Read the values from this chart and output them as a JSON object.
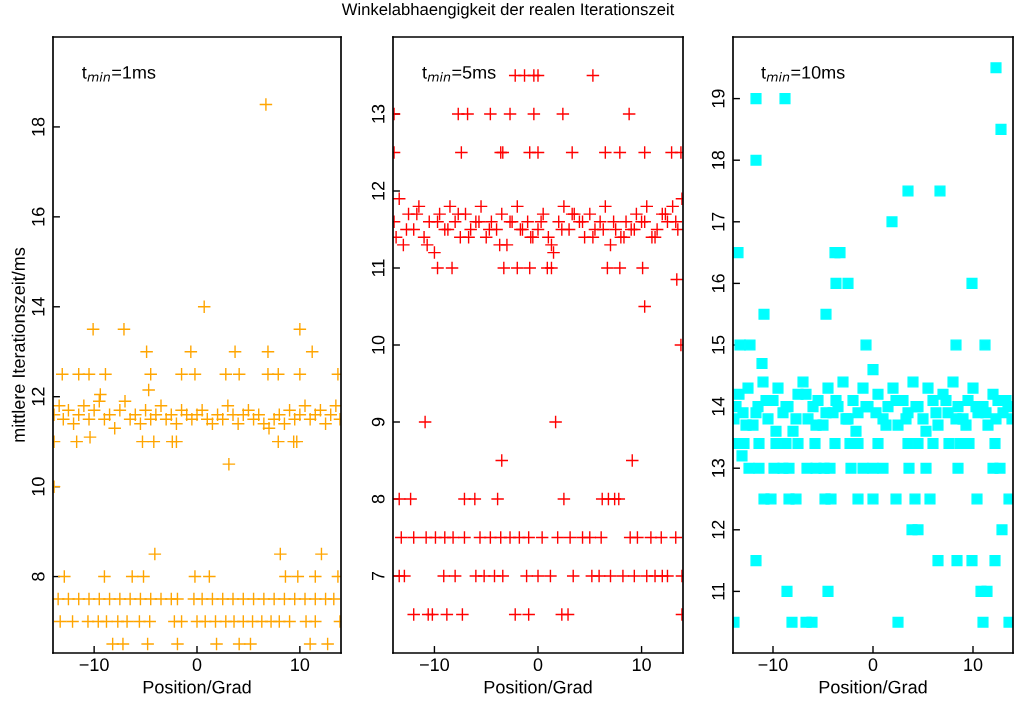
{
  "chart_data": [
    {
      "type": "scatter",
      "xlabel": "Position/Grad",
      "ylabel": "mittlere Iterationszeit/ms",
      "annotations": [
        "t$_{min}$=1ms"
      ],
      "marker": "cross",
      "grid": false,
      "xlim": [
        -14,
        14
      ],
      "xticks": [
        -10,
        0,
        10
      ],
      "ylim": [
        6.3,
        20
      ],
      "yticks": [
        8,
        10,
        12,
        14,
        16,
        18
      ],
      "series": [
        {
          "color": "#ffa500",
          "x": [
            6.7,
            0.7,
            -10.1,
            -7.1,
            10.0,
            -4.9,
            -0.6,
            3.7,
            6.9,
            11.2,
            -13.1,
            -11.5,
            -10.5,
            -8.9,
            -4.5,
            -1.5,
            -0.2,
            2.8,
            4.1,
            6.9,
            7.9,
            10.0,
            13.7,
            -4.7,
            -9.4,
            -13.9,
            -11.7,
            -10.4,
            -5.3,
            -4.2,
            -2.4,
            -2.0,
            7.9,
            9.4,
            9.7,
            3.1,
            -13.9,
            -4.1,
            8.1,
            12.1,
            -12.9,
            -9.0,
            -6.3,
            -5.2,
            -0.2,
            1.2,
            8.6,
            9.8,
            11.5,
            13.7,
            -13.5,
            -12.5,
            -11.5,
            -10.5,
            -9.5,
            -8.5,
            -7.5,
            -6.5,
            -5.5,
            -4.5,
            -3.5,
            -2.5,
            -1.9,
            -0.3,
            0.5,
            1.5,
            2.5,
            3.5,
            4.5,
            5.5,
            6.5,
            7.5,
            8.5,
            9.5,
            10.5,
            11.5,
            12.5,
            13.3,
            -13.3,
            -12.1,
            -10.6,
            -9.6,
            -8.8,
            -7.7,
            -6.8,
            -5.6,
            -4.6,
            -2.2,
            -1.5,
            0.0,
            0.8,
            1.8,
            2.8,
            3.6,
            4.5,
            5.4,
            6.3,
            7.2,
            8.0,
            9.0,
            10.6,
            11.5,
            13.9,
            -8.2,
            -7.2,
            -4.8,
            -1.9,
            1.9,
            4.1,
            5.2,
            11.0,
            12.7,
            -13.9,
            -13.4,
            -13.0,
            -12.5,
            -12.0,
            -11.5,
            -11.0,
            -10.5,
            -10.0,
            -9.5,
            -9.0,
            -8.5,
            -8.0,
            -7.5,
            -7.0,
            -6.5,
            -6.0,
            -5.5,
            -5.0,
            -4.5,
            -4.0,
            -3.5,
            -3.0,
            -2.5,
            -2.0,
            -1.5,
            -1.0,
            -0.5,
            0.0,
            0.5,
            1.0,
            1.5,
            2.0,
            2.5,
            3.0,
            3.5,
            4.0,
            4.5,
            5.0,
            5.5,
            6.0,
            6.5,
            7.0,
            7.5,
            8.0,
            8.5,
            9.0,
            9.5,
            10.0,
            10.5,
            11.0,
            11.5,
            12.0,
            12.5,
            13.0,
            13.5,
            13.9
          ],
          "values": [
            18.5,
            14,
            13.5,
            13.5,
            13.5,
            13,
            13,
            13,
            13,
            13,
            12.5,
            12.5,
            12.5,
            12.5,
            12.5,
            12.5,
            12.5,
            12.5,
            12.5,
            12.5,
            12.5,
            12.5,
            12.5,
            12.15,
            12.05,
            11,
            11,
            11.1,
            11,
            11,
            11,
            11,
            11,
            11,
            11,
            10.5,
            10,
            8.5,
            8.5,
            8.5,
            8,
            8,
            8,
            8,
            8,
            8,
            8,
            8,
            8,
            8,
            7.5,
            7.5,
            7.5,
            7.5,
            7.5,
            7.5,
            7.5,
            7.5,
            7.5,
            7.5,
            7.5,
            7.5,
            7.5,
            7.5,
            7.5,
            7.5,
            7.5,
            7.5,
            7.5,
            7.5,
            7.5,
            7.5,
            7.5,
            7.5,
            7.5,
            7.5,
            7.5,
            7.5,
            7,
            7,
            7,
            7,
            7,
            7,
            7,
            7,
            7,
            7,
            7,
            7,
            7,
            7,
            7,
            7,
            7,
            7,
            7,
            7,
            7,
            7,
            7,
            7,
            7,
            6.5,
            6.5,
            6.5,
            6.5,
            6.5,
            6.5,
            6.5,
            6.5,
            6.5,
            11.6,
            11.8,
            11.5,
            11.7,
            11.4,
            11.6,
            11.8,
            11.5,
            11.7,
            11.9,
            11.5,
            11.6,
            11.3,
            11.7,
            11.9,
            11.5,
            11.6,
            11.4,
            11.7,
            11.5,
            11.6,
            11.8,
            11.5,
            11.6,
            11.4,
            11.7,
            11.6,
            11.5,
            11.6,
            11.7,
            11.5,
            11.4,
            11.6,
            11.5,
            11.8,
            11.6,
            11.4,
            11.6,
            11.7,
            11.5,
            11.6,
            11.4,
            11.3,
            11.5,
            11.6,
            11.4,
            11.7,
            11.5,
            11.6,
            11.8,
            11.5,
            11.6,
            11.7,
            11.4,
            11.6,
            11.8,
            11.5
          ]
        }
      ]
    },
    {
      "type": "scatter",
      "title": "Winkelabhaengigkeit der realen Iterationszeit",
      "xlabel": "Position/Grad",
      "annotations": [
        "t$_{min}$=5ms"
      ],
      "marker": "cross",
      "grid": false,
      "xlim": [
        -14,
        14
      ],
      "xticks": [
        -10,
        0,
        10
      ],
      "ylim": [
        6,
        14
      ],
      "yticks": [
        7,
        8,
        9,
        10,
        11,
        12,
        13
      ],
      "series": [
        {
          "color": "#ff0000",
          "x": [
            -2.2,
            -1.3,
            -0.4,
            0.0,
            5.3,
            -13.9,
            -7.7,
            -6.8,
            -4.6,
            -2.7,
            -0.4,
            2.4,
            8.8,
            -13.9,
            -7.4,
            -3.6,
            -3.4,
            -0.8,
            0.0,
            3.3,
            6.5,
            7.9,
            10.3,
            12.9,
            13.8,
            -9.7,
            -8.3,
            -3.3,
            -2.0,
            -0.8,
            0.9,
            1.3,
            6.7,
            7.9,
            10.1,
            13.4,
            10.3,
            13.8,
            -10.9,
            1.7,
            -3.5,
            9.1,
            -13.4,
            -12.3,
            -7.1,
            -6.1,
            -3.9,
            2.5,
            6.2,
            6.8,
            7.4,
            7.8,
            -13.2,
            -12.0,
            -10.8,
            -9.9,
            -9.0,
            -8.2,
            -7.1,
            -5.6,
            -4.6,
            -3.6,
            -2.7,
            -1.8,
            -0.9,
            0.4,
            1.9,
            3.1,
            4.3,
            5.0,
            6.1,
            8.9,
            9.6,
            10.9,
            11.9,
            13.3,
            -13.4,
            -12.9,
            -9.1,
            -8.0,
            -6.0,
            -5.2,
            -4.2,
            -3.4,
            -1.1,
            0.0,
            1.2,
            3.4,
            5.2,
            5.9,
            7.0,
            8.2,
            9.3,
            10.5,
            11.3,
            12.0,
            12.5,
            13.9,
            -12.0,
            -10.6,
            -10.2,
            -8.8,
            -7.3,
            -2.2,
            -0.9,
            2.3,
            2.9,
            13.9,
            -13.9,
            -13.4,
            -13.0,
            -12.5,
            -12.0,
            -11.5,
            -11.0,
            -10.5,
            -10.0,
            -9.5,
            -9.0,
            -8.5,
            -8.0,
            -7.5,
            -7.0,
            -6.5,
            -6.0,
            -5.5,
            -5.0,
            -4.5,
            -4.0,
            -3.5,
            -3.0,
            -2.5,
            -2.0,
            -1.5,
            -1.0,
            -0.5,
            0.0,
            0.5,
            1.0,
            1.5,
            2.0,
            2.5,
            3.0,
            3.5,
            4.0,
            4.5,
            5.0,
            5.5,
            6.0,
            6.5,
            7.0,
            7.5,
            8.0,
            8.5,
            9.0,
            9.5,
            10.0,
            10.5,
            11.0,
            11.5,
            12.0,
            12.5,
            13.0,
            13.5,
            13.9,
            -13.7,
            -12.7,
            -11.7,
            -10.7,
            -9.7,
            -8.7,
            -7.7,
            -6.7,
            -5.7,
            -4.7,
            -3.7,
            -2.7,
            -1.7,
            -0.7,
            0.3,
            1.3,
            2.3,
            3.3,
            4.3,
            5.3,
            6.3,
            7.3,
            8.3,
            9.3,
            10.3,
            11.3,
            12.3,
            13.3
          ],
          "values": [
            13.5,
            13.5,
            13.5,
            13.5,
            13.5,
            13,
            13,
            13,
            13,
            13,
            13,
            13,
            13,
            12.5,
            12.5,
            12.5,
            12.5,
            12.5,
            12.5,
            12.5,
            12.5,
            12.5,
            12.5,
            12.5,
            12.5,
            11,
            11,
            11,
            11,
            11,
            11,
            11,
            11,
            11,
            11,
            10.85,
            10.5,
            10,
            9,
            9,
            8.5,
            8.5,
            8,
            8,
            8,
            8,
            8,
            8,
            8,
            8,
            8,
            8,
            7.5,
            7.5,
            7.5,
            7.5,
            7.5,
            7.5,
            7.5,
            7.5,
            7.5,
            7.5,
            7.5,
            7.5,
            7.5,
            7.5,
            7.5,
            7.5,
            7.5,
            7.5,
            7.5,
            7.5,
            7.5,
            7.5,
            7.5,
            7.5,
            7,
            7,
            7,
            7,
            7,
            7,
            7,
            7,
            7,
            7,
            7,
            7,
            7,
            7,
            7,
            7,
            7,
            7,
            7,
            7,
            7,
            7,
            6.5,
            6.5,
            6.5,
            6.5,
            6.5,
            6.5,
            6.5,
            6.5,
            6.5,
            6.5,
            11.6,
            11.9,
            11.3,
            11.7,
            11.5,
            11.8,
            11.4,
            11.6,
            11.2,
            11.7,
            11.5,
            11.8,
            11.6,
            11.4,
            11.7,
            11.5,
            11.6,
            11.8,
            11.4,
            11.6,
            11.5,
            11.7,
            11.3,
            11.6,
            11.8,
            11.5,
            11.6,
            11.4,
            11.5,
            11.7,
            11.4,
            11.2,
            11.6,
            11.8,
            11.5,
            11.7,
            11.6,
            11.4,
            11.7,
            11.5,
            11.6,
            11.8,
            11.3,
            11.5,
            11.4,
            11.6,
            11.5,
            11.7,
            11.6,
            11.8,
            11.4,
            11.5,
            11.7,
            11.6,
            11.8,
            11.5,
            11.9,
            11.4,
            11.5,
            11.7,
            11.3,
            11.6,
            11.5,
            11.7,
            11.4,
            11.6,
            11.5,
            11.3,
            11.6,
            11.5,
            11.4,
            11.6,
            11.3,
            11.5,
            11.7,
            11.6,
            11.4,
            11.5,
            11.6,
            11.4,
            11.5,
            11.6,
            11.4,
            11.7,
            11.6
          ]
        }
      ]
    },
    {
      "type": "scatter",
      "xlabel": "Position/Grad",
      "annotations": [
        "t$_{min}$=10ms"
      ],
      "marker": "square",
      "grid": false,
      "xlim": [
        -14,
        14
      ],
      "xticks": [
        -10,
        0,
        10
      ],
      "ylim": [
        10,
        20
      ],
      "yticks": [
        11,
        12,
        13,
        14,
        15,
        16,
        17,
        18,
        19
      ],
      "series": [
        {
          "color": "#00ffff",
          "x": [
            12.3,
            -11.7,
            -8.8,
            12.8,
            -11.7,
            3.5,
            6.7,
            1.9,
            -13.5,
            -3.8,
            -3.3,
            -3.7,
            -2.5,
            9.9,
            -10.9,
            -4.7,
            -13.3,
            -12.3,
            -0.7,
            8.3,
            11.2,
            -11.1,
            -13.1,
            -13.9,
            -12.9,
            -11.4,
            -9.7,
            -8.7,
            -7.5,
            -5.8,
            -3.8,
            -2.3,
            -1.5,
            0.5,
            3.5,
            4.5,
            6.0,
            7.6,
            8.7,
            9.6,
            12.2,
            -12.4,
            -11.4,
            -9.9,
            -9.0,
            -8.4,
            -6.6,
            -5.7,
            -4.9,
            -4.3,
            -2.2,
            -1.0,
            0.0,
            1.0,
            3.6,
            5.3,
            8.5,
            12.0,
            12.7,
            -10.9,
            -10.2,
            -8.4,
            -7.7,
            -4.8,
            -4.2,
            -1.5,
            0.0,
            2.3,
            4.2,
            5.7,
            10.4,
            13.6,
            3.9,
            4.5,
            12.9,
            -11.7,
            6.5,
            8.4,
            9.9,
            12.2,
            -8.6,
            -4.5,
            10.8,
            11.4,
            -13.9,
            -8.1,
            -6.7,
            -6.1,
            2.5,
            11.0,
            13.6,
            -13.9,
            -13.4,
            -13.0,
            -12.5,
            -12.0,
            -11.5,
            -11.0,
            -10.5,
            -10.0,
            -9.5,
            -9.0,
            -8.5,
            -8.0,
            -7.5,
            -7.0,
            -6.5,
            -6.0,
            -5.5,
            -5.0,
            -4.5,
            -4.0,
            -3.5,
            -3.0,
            -2.5,
            -2.0,
            -1.5,
            -1.0,
            -0.5,
            0.0,
            0.5,
            1.0,
            1.5,
            2.0,
            2.5,
            3.0,
            3.5,
            4.0,
            4.5,
            5.0,
            5.5,
            6.0,
            6.5,
            7.0,
            7.5,
            8.0,
            8.5,
            9.0,
            9.5,
            10.0,
            10.5,
            11.0,
            11.5,
            12.0,
            12.5,
            13.0,
            13.5,
            13.9,
            -13.7,
            -12.7,
            -11.7,
            -10.7,
            -9.7,
            -8.7,
            -7.7,
            -6.7,
            -5.7,
            -4.7,
            -3.7,
            -2.7,
            -1.7,
            -0.7,
            0.3,
            1.3,
            2.3,
            3.3,
            4.3,
            5.3,
            6.3,
            7.3,
            8.3,
            9.3,
            10.3,
            11.3,
            12.3,
            13.3
          ],
          "values": [
            19.5,
            19,
            19,
            18.5,
            18,
            17.5,
            17.5,
            17,
            16.5,
            16.5,
            16.5,
            16,
            16,
            16,
            15.5,
            15.5,
            15,
            15,
            15,
            15,
            15,
            14.7,
            13.2,
            13.4,
            13.4,
            13.4,
            13.4,
            13.4,
            13.4,
            13.4,
            13.4,
            13.4,
            13.4,
            13.4,
            13.4,
            13.4,
            13.4,
            13.4,
            13.4,
            13.4,
            13.4,
            13,
            13,
            13,
            13,
            13,
            13,
            13,
            13,
            13,
            13,
            13,
            13,
            13,
            13,
            13,
            13,
            13,
            13,
            12.5,
            12.5,
            12.5,
            12.5,
            12.5,
            12.5,
            12.5,
            12.5,
            12.5,
            12.5,
            12.5,
            12.5,
            12.5,
            12,
            12,
            12,
            11.5,
            11.5,
            11.5,
            11.5,
            11.5,
            11,
            11,
            11,
            11,
            10.5,
            10.5,
            10.5,
            10.5,
            10.5,
            10.5,
            10.5,
            13.8,
            14.2,
            13.9,
            14.3,
            13.7,
            14.0,
            14.4,
            13.8,
            14.1,
            14.3,
            13.9,
            14.0,
            13.6,
            14.2,
            14.4,
            13.8,
            14.0,
            14.1,
            13.7,
            14.3,
            13.9,
            14.0,
            14.4,
            13.8,
            14.1,
            13.9,
            14.3,
            14.0,
            14.6,
            14.2,
            13.8,
            14.0,
            14.3,
            13.7,
            14.1,
            13.9,
            14.4,
            14.0,
            13.8,
            14.3,
            14.1,
            13.7,
            14.2,
            13.9,
            14.4,
            14.0,
            13.8,
            14.1,
            14.3,
            13.9,
            14.0,
            13.7,
            14.2,
            14.1,
            13.9,
            14.0,
            13.8,
            14.0,
            13.7,
            13.9,
            14.1,
            13.6,
            14.0,
            13.8,
            14.2,
            13.7,
            13.9,
            14.1,
            13.8,
            13.6,
            14.0,
            13.9,
            13.7,
            14.1,
            13.8,
            14.0,
            13.6,
            13.9,
            14.1,
            13.8,
            13.7,
            14.0,
            13.9,
            13.8,
            14.1
          ]
        }
      ]
    }
  ]
}
